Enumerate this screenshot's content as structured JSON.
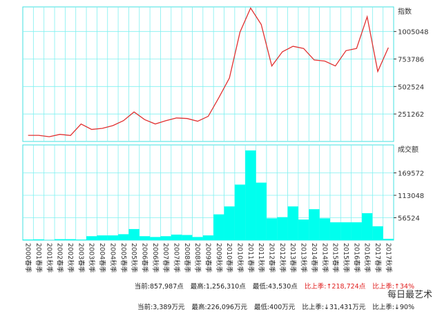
{
  "chart_data": [
    {
      "type": "line",
      "axis_title": "指数",
      "color": "#e03030",
      "categories": [
        "2000春季",
        "2001春季",
        "2001秋季",
        "2002春季",
        "2002秋季",
        "2003春季",
        "2003秋季",
        "2004春季",
        "2004秋季",
        "2005春季",
        "2005秋季",
        "2006春季",
        "2006秋季",
        "2007春季",
        "2007秋季",
        "2008春季",
        "2008秋季",
        "2009春季",
        "2009秋季",
        "2010春季",
        "2010秋季",
        "2011春季",
        "2011秋季",
        "2012春季",
        "2012秋季",
        "2013春季",
        "2013秋季",
        "2014春季",
        "2014秋季",
        "2015春季",
        "2015秋季",
        "2016春季",
        "2016秋季",
        "2017春季",
        "2017秋季"
      ],
      "values": [
        56000,
        56000,
        43530,
        65000,
        55000,
        160000,
        110000,
        120000,
        145000,
        190000,
        270000,
        200000,
        160000,
        190000,
        215000,
        210000,
        185000,
        230000,
        400000,
        580000,
        1000000,
        1220000,
        1070000,
        690000,
        820000,
        870000,
        850000,
        745000,
        735000,
        690000,
        830000,
        850000,
        1140000,
        640000,
        857987
      ],
      "ylim": [
        0,
        1230000
      ],
      "yticks": [
        251262,
        502524,
        753786,
        1005048
      ],
      "grid": true
    },
    {
      "type": "bar",
      "axis_title": "成交额",
      "color": "#00ffee",
      "values": [
        1500,
        2000,
        400,
        2500,
        2500,
        1500,
        10000,
        12000,
        12000,
        15000,
        28000,
        10000,
        8000,
        10000,
        14000,
        13000,
        8000,
        12000,
        65000,
        85000,
        140000,
        226096,
        145000,
        55000,
        58000,
        85000,
        52000,
        78000,
        55000,
        45000,
        45000,
        45000,
        68000,
        35000,
        3389
      ],
      "ylim": [
        0,
        240000
      ],
      "yticks": [
        56524,
        113048,
        169572
      ],
      "grid": true
    }
  ],
  "footer": [
    [
      "当前:857,987点",
      "最高:1,256,310点",
      "最低:43,530点",
      "比上季:↑218,724点",
      "比上季:↑34%"
    ],
    [
      "当前:3,389万元",
      "最高:226,096万元",
      "最低:400万元",
      "比上季:↓31,431万元",
      "比上季:↓90%"
    ]
  ],
  "watermark": "每日最艺术"
}
